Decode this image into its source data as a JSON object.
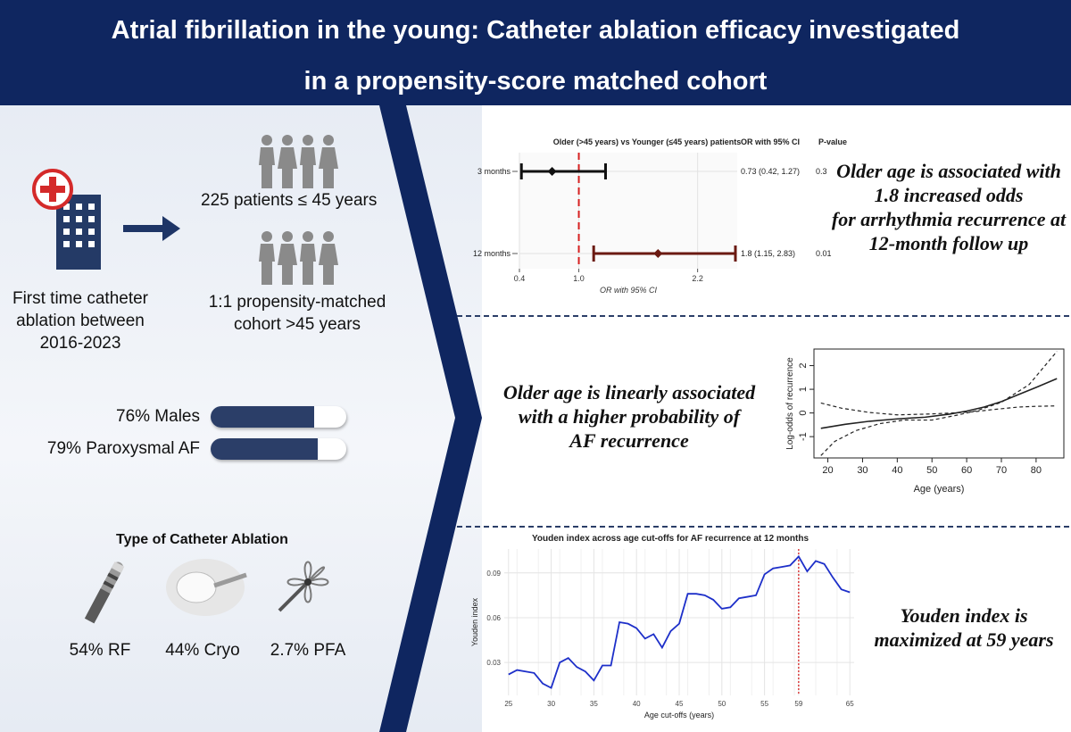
{
  "title": {
    "line1": "Atrial fibrillation in the young: Catheter ablation efficacy investigated",
    "line2": "in a propensity-score matched cohort"
  },
  "left": {
    "ablation_text": [
      "First time catheter",
      "ablation between",
      "2016-2023"
    ],
    "young_patients": "225 patients ≤ 45 years",
    "matched_cohort": [
      "1:1 propensity-matched",
      "cohort >45 years"
    ],
    "stats": [
      {
        "label": "76% Males",
        "value": 0.76
      },
      {
        "label": "79% Paroxysmal AF",
        "value": 0.79
      }
    ],
    "ablation_types_title": "Type of Catheter Ablation",
    "ablation_types": [
      {
        "label": "54% RF",
        "icon": "rf-catheter-icon"
      },
      {
        "label": "44% Cryo",
        "icon": "cryo-balloon-icon"
      },
      {
        "label": "2.7% PFA",
        "icon": "pfa-catheter-icon"
      }
    ]
  },
  "findings": {
    "f1": [
      "Older age is associated with",
      "1.8 increased odds",
      "for arrhythmia recurrence at",
      "12-month follow up"
    ],
    "f2": [
      "Older age is linearly associated",
      "with a higher probability of",
      "AF recurrence"
    ],
    "f3": [
      "Youden index is",
      "maximized at 59 years"
    ]
  },
  "colors": {
    "navy": "#0f2660",
    "accent_red": "#d62020",
    "dark_red": "#6b1a12"
  },
  "chart_data": [
    {
      "type": "forest",
      "title": "Older (>45 years) vs Younger (≤45 years) patients",
      "column_headers": [
        "OR with 95% CI",
        "P-value"
      ],
      "xlabel": "OR with 95% CI",
      "xlim": [
        0.4,
        2.6
      ],
      "xticks": [
        0.4,
        1.0,
        2.2
      ],
      "xtick_labels": [
        "0.4",
        "1.0",
        "2.2"
      ],
      "reference": 1.0,
      "rows": [
        {
          "label": "3 months",
          "or": 0.73,
          "lo": 0.42,
          "hi": 1.27,
          "ci_text": "0.73 (0.42, 1.27)",
          "p": "0.3",
          "color": "#111111"
        },
        {
          "label": "12 months",
          "or": 1.8,
          "lo": 1.15,
          "hi": 2.83,
          "ci_text": "1.8 (1.15, 2.83)",
          "p": "0.01",
          "color": "#6b1a12"
        }
      ]
    },
    {
      "type": "line",
      "xlabel": "Age (years)",
      "ylabel": "Log-odds of recurrence",
      "xlim": [
        16,
        88
      ],
      "ylim": [
        -1.9,
        2.7
      ],
      "xticks": [
        20,
        30,
        40,
        50,
        60,
        70,
        80
      ],
      "yticks": [
        -1,
        0,
        1,
        2
      ],
      "series": [
        {
          "style": "solid",
          "x": [
            18,
            25,
            32,
            40,
            48,
            55,
            60,
            65,
            70,
            75,
            80,
            86
          ],
          "y": [
            -0.65,
            -0.48,
            -0.35,
            -0.25,
            -0.18,
            -0.05,
            0.08,
            0.25,
            0.48,
            0.78,
            1.08,
            1.45
          ]
        },
        {
          "style": "dashed",
          "x": [
            18,
            22,
            28,
            35,
            42,
            50,
            57,
            63,
            70,
            78,
            86
          ],
          "y": [
            -1.8,
            -1.2,
            -0.75,
            -0.45,
            -0.3,
            -0.3,
            -0.1,
            0.1,
            0.45,
            1.2,
            2.6
          ]
        },
        {
          "style": "dashed",
          "x": [
            18,
            24,
            32,
            40,
            48,
            56,
            62,
            68,
            75,
            80,
            86
          ],
          "y": [
            0.42,
            0.2,
            0.02,
            -0.08,
            -0.05,
            0.0,
            0.05,
            0.15,
            0.25,
            0.28,
            0.3
          ]
        }
      ]
    },
    {
      "type": "line",
      "title": "Youden index across age cut-offs for AF recurrence at 12 months",
      "xlabel": "Age cut-offs (years)",
      "ylabel": "Youden index",
      "xlim": [
        24.5,
        65.5
      ],
      "ylim": [
        0.008,
        0.106
      ],
      "xticks": [
        25,
        30,
        35,
        40,
        45,
        50,
        55,
        59,
        65
      ],
      "yticks": [
        0.03,
        0.06,
        0.09
      ],
      "ytick_labels": [
        "0.03",
        "0.06",
        "0.09"
      ],
      "vline": 59,
      "series": [
        {
          "x": [
            25,
            26,
            27,
            28,
            29,
            30,
            31,
            32,
            33,
            34,
            35,
            36,
            37,
            38,
            39,
            40,
            41,
            42,
            43,
            44,
            45,
            46,
            47,
            48,
            49,
            50,
            51,
            52,
            53,
            54,
            55,
            56,
            57,
            58,
            59,
            60,
            61,
            62,
            63,
            64,
            65
          ],
          "y": [
            0.022,
            0.025,
            0.024,
            0.023,
            0.016,
            0.013,
            0.03,
            0.033,
            0.027,
            0.024,
            0.018,
            0.028,
            0.028,
            0.057,
            0.056,
            0.053,
            0.046,
            0.049,
            0.04,
            0.051,
            0.056,
            0.076,
            0.076,
            0.075,
            0.072,
            0.066,
            0.067,
            0.073,
            0.074,
            0.075,
            0.089,
            0.093,
            0.094,
            0.095,
            0.101,
            0.091,
            0.098,
            0.096,
            0.087,
            0.079,
            0.077
          ]
        }
      ]
    }
  ]
}
